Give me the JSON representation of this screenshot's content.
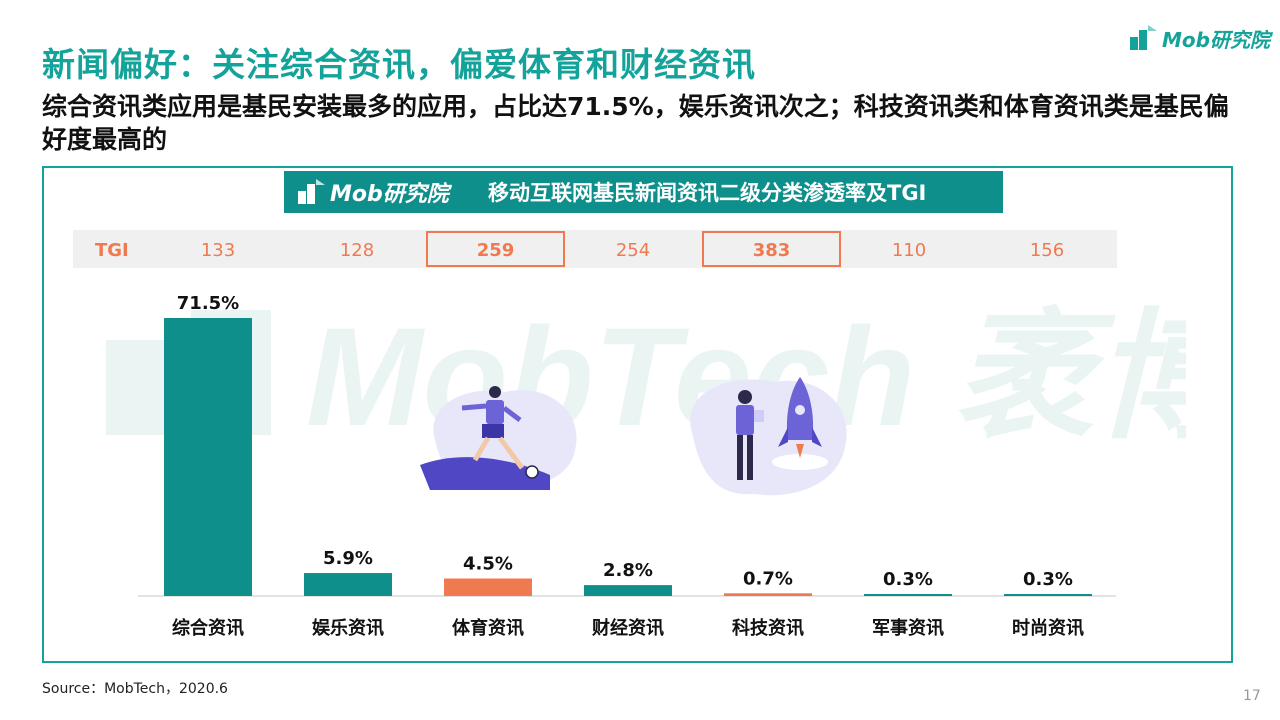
{
  "header": {
    "title": "新闻偏好：关注综合资讯，偏爱体育和财经资讯",
    "subtitle": "综合资讯类应用是基民安装最多的应用，占比达71.5%，娱乐资讯次之；科技资讯类和体育资讯类是基民偏好度最高的",
    "brand_text": "Mob研究院"
  },
  "chart_header": {
    "logo_text": "Mob研究院",
    "title": "移动互联网基民新闻资讯二级分类渗透率及TGI"
  },
  "tgi": {
    "label": "TGI",
    "values": [
      "133",
      "128",
      "259",
      "254",
      "383",
      "110",
      "156"
    ]
  },
  "watermark_text": "MobTech 袤博",
  "footer": {
    "source": "Source：MobTech，2020.6",
    "page": "17"
  },
  "colors": {
    "teal": "#14a39a",
    "teal_dark": "#0f8f8b",
    "orange": "#f07a50",
    "illustration": "#6b63d6"
  },
  "chart_data": {
    "type": "bar",
    "title": "移动互联网基民新闻资讯二级分类渗透率及TGI",
    "categories": [
      "综合资讯",
      "娱乐资讯",
      "体育资讯",
      "财经资讯",
      "科技资讯",
      "军事资讯",
      "时尚资讯"
    ],
    "values": [
      71.5,
      5.9,
      4.5,
      2.8,
      0.7,
      0.3,
      0.3
    ],
    "value_labels": [
      "71.5%",
      "5.9%",
      "4.5%",
      "2.8%",
      "0.7%",
      "0.3%",
      "0.3%"
    ],
    "tgi": [
      133,
      128,
      259,
      254,
      383,
      110,
      156
    ],
    "highlighted": [
      "体育资讯",
      "科技资讯"
    ],
    "ylim": [
      0,
      71.5
    ],
    "xlabel": "",
    "ylabel": "",
    "grid": false,
    "legend": "none"
  }
}
